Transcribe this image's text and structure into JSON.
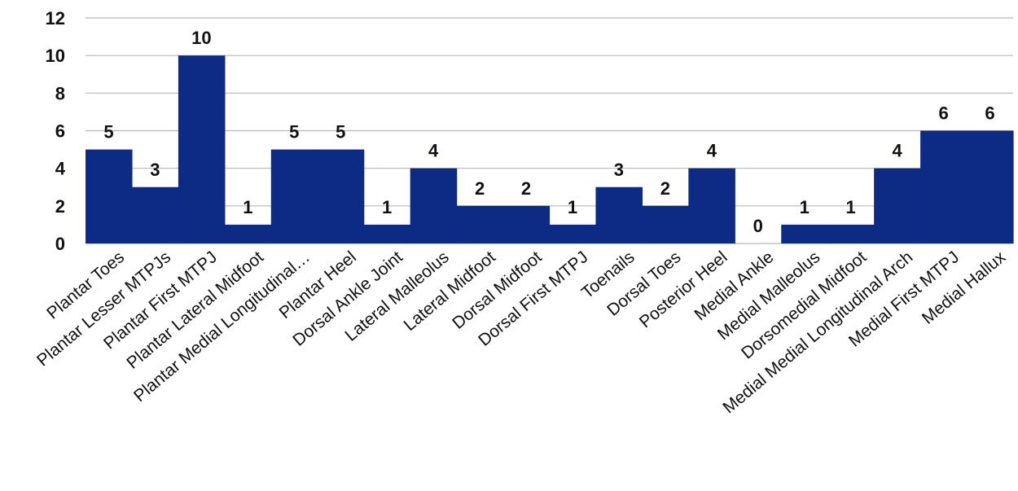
{
  "chart_data": {
    "type": "bar",
    "categories": [
      "Plantar Toes",
      "Plantar Lesser MTPJs",
      "Plantar First MTPJ",
      "Plantar  Lateral Midfoot",
      "Plantar  Medial Longitudinal…",
      "Plantar  Heel",
      "Dorsal  Ankle Joint",
      "Lateral Malleolus",
      "Lateral Midfoot",
      "Dorsal Midfoot",
      "Dorsal  First MTPJ",
      "Toenails",
      "Dorsal Toes",
      "Posterior Heel",
      "Medial Ankle",
      "Medial Malleolus",
      "Dorsomedial Midfoot",
      "Medial Medial Longitudinal Arch",
      "Medial First MTPJ",
      "Medial Hallux"
    ],
    "values": [
      5,
      3,
      10,
      1,
      5,
      5,
      1,
      4,
      2,
      2,
      1,
      3,
      2,
      4,
      0,
      1,
      1,
      4,
      6,
      6
    ],
    "yticks": [
      0,
      2,
      4,
      6,
      8,
      10,
      12
    ],
    "ylim": [
      0,
      12
    ],
    "grid": true,
    "bar_color": "#0d2a85",
    "data_labels": true
  }
}
